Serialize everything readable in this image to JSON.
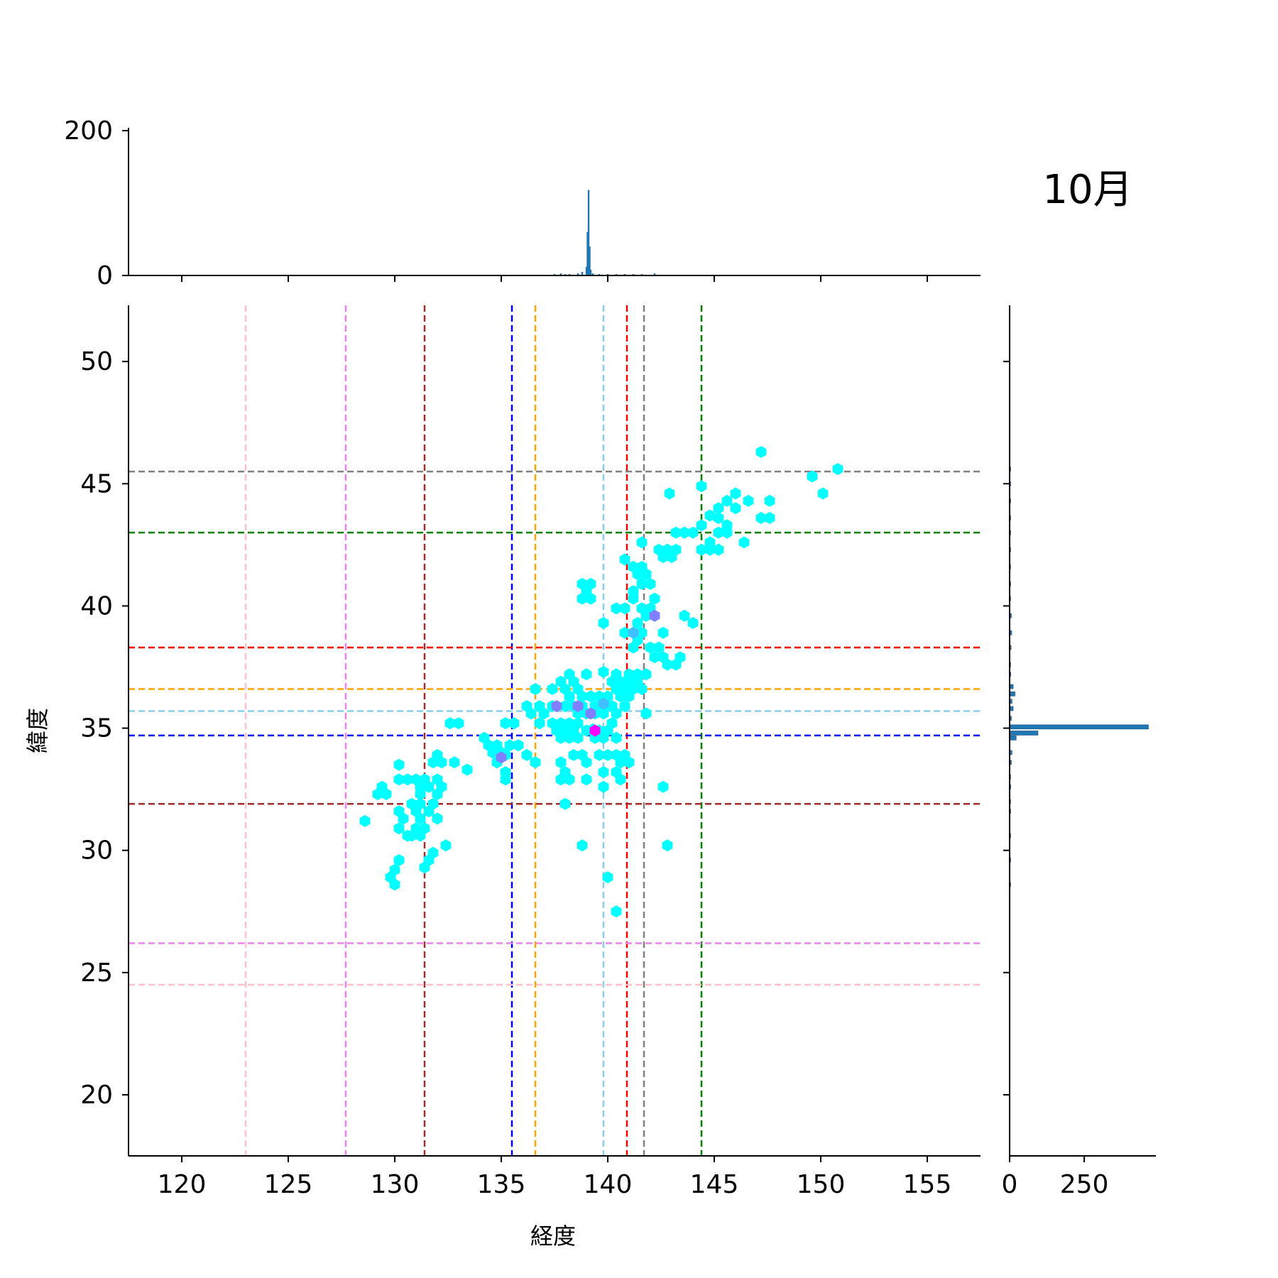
{
  "figure": {
    "month_label": "10月"
  },
  "chart_data": [
    {
      "type": "hexbin",
      "role": "joint",
      "xlabel": "経度",
      "ylabel": "緯度",
      "xlim": [
        117.5,
        157.5
      ],
      "ylim": [
        17.5,
        52.3
      ],
      "x_ticks": [
        120,
        125,
        130,
        135,
        140,
        145,
        150,
        155
      ],
      "y_ticks": [
        20,
        25,
        30,
        35,
        40,
        45,
        50
      ],
      "grid": false,
      "colormap": [
        "#00ffff",
        "#40c0ff",
        "#8080ff",
        "#c040ff",
        "#ff00ff"
      ],
      "vertical_lines": [
        {
          "x": 123.0,
          "color": "#ffc0cb"
        },
        {
          "x": 127.7,
          "color": "#ee82ee"
        },
        {
          "x": 131.4,
          "color": "#a52a2a"
        },
        {
          "x": 135.5,
          "color": "#0000ff"
        },
        {
          "x": 136.6,
          "color": "#ffa500"
        },
        {
          "x": 139.8,
          "color": "#87ceeb"
        },
        {
          "x": 140.9,
          "color": "#ff0000"
        },
        {
          "x": 141.7,
          "color": "#808080"
        },
        {
          "x": 144.4,
          "color": "#008000"
        }
      ],
      "horizontal_lines": [
        {
          "y": 45.5,
          "color": "#808080"
        },
        {
          "y": 43.0,
          "color": "#008000"
        },
        {
          "y": 38.3,
          "color": "#ff0000"
        },
        {
          "y": 36.6,
          "color": "#ffa500"
        },
        {
          "y": 35.7,
          "color": "#87ceeb"
        },
        {
          "y": 34.7,
          "color": "#0000ff"
        },
        {
          "y": 31.9,
          "color": "#a52a2a"
        },
        {
          "y": 26.2,
          "color": "#ee82ee"
        },
        {
          "y": 24.5,
          "color": "#ffc0cb"
        }
      ],
      "points": [
        [
          147.2,
          46.3
        ],
        [
          150.8,
          45.6
        ],
        [
          149.6,
          45.3
        ],
        [
          150.1,
          44.6
        ],
        [
          144.4,
          44.9
        ],
        [
          142.9,
          44.6
        ],
        [
          146.0,
          44.6
        ],
        [
          145.6,
          44.3
        ],
        [
          146.6,
          44.3
        ],
        [
          147.6,
          44.3
        ],
        [
          145.2,
          44.0
        ],
        [
          146.0,
          44.0
        ],
        [
          144.8,
          43.7
        ],
        [
          145.2,
          43.6
        ],
        [
          147.2,
          43.6
        ],
        [
          147.6,
          43.6
        ],
        [
          144.4,
          43.3
        ],
        [
          145.6,
          43.3
        ],
        [
          143.2,
          43.0
        ],
        [
          143.6,
          43.0
        ],
        [
          144.0,
          43.0
        ],
        [
          145.2,
          43.0
        ],
        [
          145.6,
          43.0
        ],
        [
          144.8,
          42.6
        ],
        [
          146.4,
          42.6
        ],
        [
          141.6,
          42.6
        ],
        [
          142.4,
          42.3
        ],
        [
          142.8,
          42.3
        ],
        [
          143.2,
          42.3
        ],
        [
          144.4,
          42.3
        ],
        [
          144.8,
          42.3
        ],
        [
          145.2,
          42.3
        ],
        [
          142.6,
          42.0
        ],
        [
          143.0,
          42.0
        ],
        [
          140.8,
          41.9
        ],
        [
          141.2,
          41.6
        ],
        [
          141.6,
          41.6
        ],
        [
          141.4,
          41.3
        ],
        [
          141.8,
          41.3
        ],
        [
          138.8,
          40.9
        ],
        [
          139.2,
          40.9
        ],
        [
          141.6,
          40.9
        ],
        [
          142.0,
          40.9
        ],
        [
          141.2,
          40.6
        ],
        [
          139.0,
          40.6
        ],
        [
          138.8,
          40.3
        ],
        [
          139.2,
          40.3
        ],
        [
          141.2,
          40.3
        ],
        [
          142.2,
          40.3
        ],
        [
          140.4,
          39.9
        ],
        [
          140.8,
          39.9
        ],
        [
          141.6,
          39.9
        ],
        [
          142.0,
          39.9
        ],
        [
          141.8,
          39.6
        ],
        [
          142.2,
          39.6
        ],
        [
          143.6,
          39.6
        ],
        [
          144.0,
          39.3
        ],
        [
          139.8,
          39.3
        ],
        [
          141.4,
          39.3
        ],
        [
          142.6,
          38.9
        ],
        [
          140.8,
          38.9
        ],
        [
          141.2,
          38.9
        ],
        [
          141.6,
          38.9
        ],
        [
          141.4,
          38.6
        ],
        [
          141.2,
          38.3
        ],
        [
          142.0,
          38.3
        ],
        [
          142.4,
          38.3
        ],
        [
          142.2,
          37.9
        ],
        [
          142.6,
          37.9
        ],
        [
          143.4,
          37.9
        ],
        [
          142.8,
          37.6
        ],
        [
          143.2,
          37.6
        ],
        [
          138.2,
          37.2
        ],
        [
          139.0,
          37.2
        ],
        [
          139.8,
          37.3
        ],
        [
          140.4,
          37.2
        ],
        [
          141.0,
          37.2
        ],
        [
          141.4,
          37.2
        ],
        [
          141.8,
          37.2
        ],
        [
          137.8,
          36.9
        ],
        [
          138.4,
          36.9
        ],
        [
          140.2,
          36.9
        ],
        [
          140.6,
          36.9
        ],
        [
          141.0,
          36.9
        ],
        [
          141.4,
          36.9
        ],
        [
          136.6,
          36.6
        ],
        [
          137.4,
          36.6
        ],
        [
          138.0,
          36.6
        ],
        [
          138.6,
          36.6
        ],
        [
          140.4,
          36.6
        ],
        [
          140.8,
          36.6
        ],
        [
          141.2,
          36.6
        ],
        [
          141.6,
          36.6
        ],
        [
          138.2,
          36.3
        ],
        [
          138.8,
          36.3
        ],
        [
          139.2,
          36.3
        ],
        [
          139.6,
          36.3
        ],
        [
          140.0,
          36.3
        ],
        [
          140.6,
          36.3
        ],
        [
          141.0,
          36.3
        ],
        [
          136.2,
          35.9
        ],
        [
          136.8,
          35.9
        ],
        [
          137.4,
          35.9
        ],
        [
          138.0,
          35.9
        ],
        [
          138.4,
          35.9
        ],
        [
          138.8,
          35.9
        ],
        [
          139.4,
          35.9
        ],
        [
          139.8,
          35.9
        ],
        [
          140.2,
          35.9
        ],
        [
          140.8,
          35.9
        ],
        [
          136.4,
          35.6
        ],
        [
          137.0,
          35.6
        ],
        [
          138.6,
          35.6
        ],
        [
          139.0,
          35.6
        ],
        [
          139.4,
          35.6
        ],
        [
          139.8,
          35.6
        ],
        [
          140.4,
          35.6
        ],
        [
          141.8,
          35.6
        ],
        [
          135.2,
          35.2
        ],
        [
          135.6,
          35.2
        ],
        [
          136.8,
          35.2
        ],
        [
          137.4,
          35.2
        ],
        [
          137.8,
          35.2
        ],
        [
          138.2,
          35.2
        ],
        [
          138.6,
          35.2
        ],
        [
          140.2,
          35.2
        ],
        [
          132.6,
          35.2
        ],
        [
          133.0,
          35.2
        ],
        [
          137.6,
          34.9
        ],
        [
          138.0,
          34.9
        ],
        [
          138.4,
          34.9
        ],
        [
          139.0,
          34.9
        ],
        [
          139.3,
          34.95
        ],
        [
          139.6,
          34.9
        ],
        [
          140.0,
          34.9
        ],
        [
          137.8,
          34.6
        ],
        [
          138.2,
          34.6
        ],
        [
          138.6,
          34.6
        ],
        [
          139.4,
          34.6
        ],
        [
          139.8,
          34.6
        ],
        [
          140.4,
          34.6
        ],
        [
          134.2,
          34.6
        ],
        [
          134.4,
          34.3
        ],
        [
          134.8,
          34.3
        ],
        [
          135.4,
          34.3
        ],
        [
          135.8,
          34.3
        ],
        [
          134.6,
          34.0
        ],
        [
          135.0,
          34.0
        ],
        [
          135.2,
          33.9
        ],
        [
          136.2,
          33.9
        ],
        [
          138.4,
          33.9
        ],
        [
          138.8,
          33.9
        ],
        [
          139.6,
          33.9
        ],
        [
          140.0,
          33.9
        ],
        [
          140.4,
          33.9
        ],
        [
          140.8,
          33.9
        ],
        [
          132.0,
          33.9
        ],
        [
          131.8,
          33.6
        ],
        [
          132.2,
          33.6
        ],
        [
          132.8,
          33.6
        ],
        [
          134.8,
          33.6
        ],
        [
          136.6,
          33.6
        ],
        [
          137.8,
          33.6
        ],
        [
          139.0,
          33.6
        ],
        [
          140.6,
          33.6
        ],
        [
          141.0,
          33.6
        ],
        [
          130.2,
          33.5
        ],
        [
          133.4,
          33.3
        ],
        [
          135.2,
          33.2
        ],
        [
          138.0,
          33.2
        ],
        [
          139.8,
          33.2
        ],
        [
          140.4,
          33.2
        ],
        [
          132.0,
          32.9
        ],
        [
          130.2,
          32.9
        ],
        [
          130.6,
          32.9
        ],
        [
          131.0,
          32.9
        ],
        [
          131.4,
          32.9
        ],
        [
          135.2,
          32.9
        ],
        [
          137.8,
          32.9
        ],
        [
          138.2,
          32.9
        ],
        [
          139.0,
          32.9
        ],
        [
          140.6,
          32.9
        ],
        [
          142.6,
          32.6
        ],
        [
          139.8,
          32.6
        ],
        [
          132.2,
          32.6
        ],
        [
          131.2,
          32.6
        ],
        [
          131.6,
          32.6
        ],
        [
          129.4,
          32.6
        ],
        [
          132.0,
          32.3
        ],
        [
          129.2,
          32.3
        ],
        [
          129.6,
          32.3
        ],
        [
          131.2,
          32.3
        ],
        [
          131.8,
          31.9
        ],
        [
          130.8,
          31.9
        ],
        [
          131.2,
          31.9
        ],
        [
          138.0,
          31.9
        ],
        [
          130.2,
          31.6
        ],
        [
          131.0,
          31.6
        ],
        [
          131.6,
          31.6
        ],
        [
          130.4,
          31.3
        ],
        [
          131.2,
          31.3
        ],
        [
          132.0,
          31.3
        ],
        [
          128.6,
          31.2
        ],
        [
          130.2,
          30.9
        ],
        [
          131.0,
          30.9
        ],
        [
          131.4,
          30.9
        ],
        [
          130.8,
          30.6
        ],
        [
          130.6,
          30.6
        ],
        [
          131.2,
          30.6
        ],
        [
          132.4,
          30.2
        ],
        [
          138.8,
          30.2
        ],
        [
          142.8,
          30.2
        ],
        [
          131.8,
          29.9
        ],
        [
          131.6,
          29.6
        ],
        [
          130.2,
          29.6
        ],
        [
          131.4,
          29.3
        ],
        [
          130.0,
          29.2
        ],
        [
          129.8,
          28.9
        ],
        [
          140.0,
          28.9
        ],
        [
          130.0,
          28.6
        ],
        [
          140.4,
          27.5
        ]
      ],
      "dense_points": [
        {
          "x": 139.2,
          "y": 35.6,
          "level": 2
        },
        {
          "x": 138.6,
          "y": 35.9,
          "level": 2
        },
        {
          "x": 137.6,
          "y": 35.9,
          "level": 2
        },
        {
          "x": 135.0,
          "y": 33.8,
          "level": 2
        },
        {
          "x": 141.2,
          "y": 38.9,
          "level": 1
        },
        {
          "x": 142.2,
          "y": 39.6,
          "level": 2
        },
        {
          "x": 139.8,
          "y": 36.0,
          "level": 1
        },
        {
          "x": 139.4,
          "y": 34.9,
          "level": 4
        }
      ]
    },
    {
      "type": "bar",
      "role": "marginal-x",
      "ylim": [
        0,
        200
      ],
      "y_ticks": [
        0,
        200
      ],
      "color": "#1f77b4",
      "bins": [
        [
          130.0,
          1
        ],
        [
          131.0,
          1
        ],
        [
          131.5,
          1
        ],
        [
          132.0,
          1
        ],
        [
          135.2,
          1
        ],
        [
          135.6,
          1
        ],
        [
          137.5,
          2
        ],
        [
          137.8,
          3
        ],
        [
          138.0,
          2
        ],
        [
          138.2,
          2
        ],
        [
          138.6,
          3
        ],
        [
          138.8,
          5
        ],
        [
          139.0,
          12
        ],
        [
          139.05,
          60
        ],
        [
          139.1,
          118
        ],
        [
          139.15,
          40
        ],
        [
          139.2,
          8
        ],
        [
          139.3,
          3
        ],
        [
          139.6,
          2
        ],
        [
          140.0,
          2
        ],
        [
          140.4,
          2
        ],
        [
          140.8,
          2
        ],
        [
          141.2,
          2
        ],
        [
          141.6,
          2
        ],
        [
          142.2,
          3
        ],
        [
          142.8,
          1
        ],
        [
          143.4,
          1
        ],
        [
          144.0,
          1
        ],
        [
          144.6,
          1
        ],
        [
          145.2,
          1
        ],
        [
          145.6,
          1
        ]
      ]
    },
    {
      "type": "bar",
      "role": "marginal-y",
      "xlim": [
        0,
        490
      ],
      "x_ticks": [
        0,
        250
      ],
      "color": "#1f77b4",
      "bins": [
        [
          28.6,
          1
        ],
        [
          29.6,
          1
        ],
        [
          30.6,
          2
        ],
        [
          31.6,
          2
        ],
        [
          32.0,
          3
        ],
        [
          32.6,
          4
        ],
        [
          33.0,
          3
        ],
        [
          33.6,
          6
        ],
        [
          34.0,
          8
        ],
        [
          34.6,
          22
        ],
        [
          34.8,
          95
        ],
        [
          35.05,
          465
        ],
        [
          35.4,
          6
        ],
        [
          35.8,
          12
        ],
        [
          36.1,
          8
        ],
        [
          36.4,
          18
        ],
        [
          36.7,
          12
        ],
        [
          37.2,
          4
        ],
        [
          37.6,
          3
        ],
        [
          38.3,
          5
        ],
        [
          38.9,
          7
        ],
        [
          39.6,
          6
        ],
        [
          40.3,
          3
        ],
        [
          40.9,
          2
        ],
        [
          41.6,
          2
        ],
        [
          42.3,
          2
        ],
        [
          43.0,
          3
        ],
        [
          43.6,
          2
        ],
        [
          44.3,
          2
        ],
        [
          45.0,
          1
        ],
        [
          45.6,
          1
        ]
      ]
    }
  ]
}
